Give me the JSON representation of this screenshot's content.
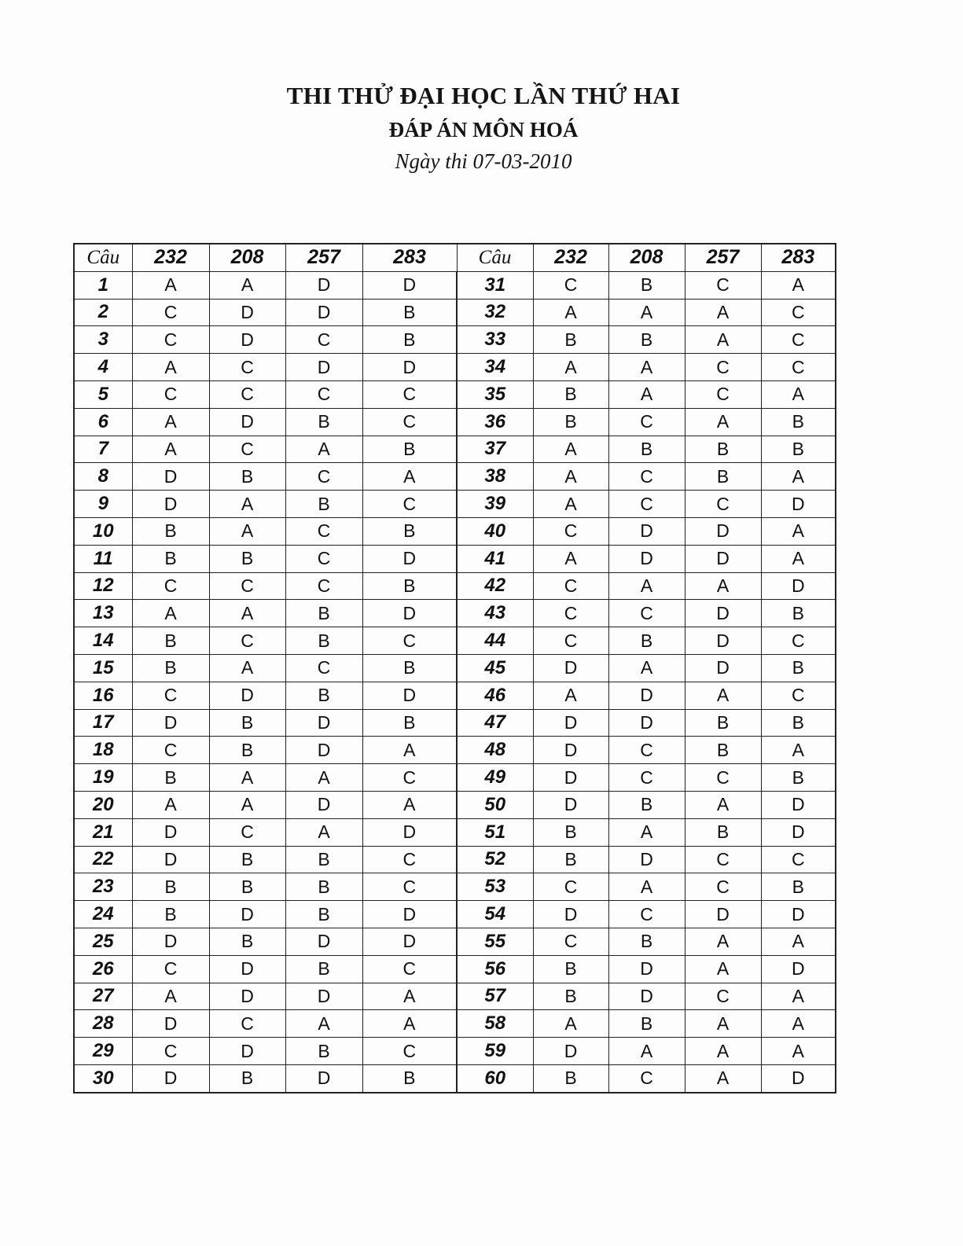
{
  "header": {
    "title": "THI THỬ ĐẠI HỌC LẦN THỨ HAI",
    "subtitle": "ĐÁP ÁN MÔN HOÁ",
    "date": "Ngày thi 07-03-2010"
  },
  "table": {
    "columns": [
      "Câu",
      "232",
      "208",
      "257",
      "283"
    ],
    "rows": [
      [
        "1",
        "A",
        "A",
        "D",
        "D"
      ],
      [
        "2",
        "C",
        "D",
        "D",
        "B"
      ],
      [
        "3",
        "C",
        "D",
        "C",
        "B"
      ],
      [
        "4",
        "A",
        "C",
        "D",
        "D"
      ],
      [
        "5",
        "C",
        "C",
        "C",
        "C"
      ],
      [
        "6",
        "A",
        "D",
        "B",
        "C"
      ],
      [
        "7",
        "A",
        "C",
        "A",
        "B"
      ],
      [
        "8",
        "D",
        "B",
        "C",
        "A"
      ],
      [
        "9",
        "D",
        "A",
        "B",
        "C"
      ],
      [
        "10",
        "B",
        "A",
        "C",
        "B"
      ],
      [
        "11",
        "B",
        "B",
        "C",
        "D"
      ],
      [
        "12",
        "C",
        "C",
        "C",
        "B"
      ],
      [
        "13",
        "A",
        "A",
        "B",
        "D"
      ],
      [
        "14",
        "B",
        "C",
        "B",
        "C"
      ],
      [
        "15",
        "B",
        "A",
        "C",
        "B"
      ],
      [
        "16",
        "C",
        "D",
        "B",
        "D"
      ],
      [
        "17",
        "D",
        "B",
        "D",
        "B"
      ],
      [
        "18",
        "C",
        "B",
        "D",
        "A"
      ],
      [
        "19",
        "B",
        "A",
        "A",
        "C"
      ],
      [
        "20",
        "A",
        "A",
        "D",
        "A"
      ],
      [
        "21",
        "D",
        "C",
        "A",
        "D"
      ],
      [
        "22",
        "D",
        "B",
        "B",
        "C"
      ],
      [
        "23",
        "B",
        "B",
        "B",
        "C"
      ],
      [
        "24",
        "B",
        "D",
        "B",
        "D"
      ],
      [
        "25",
        "D",
        "B",
        "D",
        "D"
      ],
      [
        "26",
        "C",
        "D",
        "B",
        "C"
      ],
      [
        "27",
        "A",
        "D",
        "D",
        "A"
      ],
      [
        "28",
        "D",
        "C",
        "A",
        "A"
      ],
      [
        "29",
        "C",
        "D",
        "B",
        "C"
      ],
      [
        "30",
        "D",
        "B",
        "D",
        "B"
      ],
      [
        "31",
        "C",
        "B",
        "C",
        "A"
      ],
      [
        "32",
        "A",
        "A",
        "A",
        "C"
      ],
      [
        "33",
        "B",
        "B",
        "A",
        "C"
      ],
      [
        "34",
        "A",
        "A",
        "C",
        "C"
      ],
      [
        "35",
        "B",
        "A",
        "C",
        "A"
      ],
      [
        "36",
        "B",
        "C",
        "A",
        "B"
      ],
      [
        "37",
        "A",
        "B",
        "B",
        "B"
      ],
      [
        "38",
        "A",
        "C",
        "B",
        "A"
      ],
      [
        "39",
        "A",
        "C",
        "C",
        "D"
      ],
      [
        "40",
        "C",
        "D",
        "D",
        "A"
      ],
      [
        "41",
        "A",
        "D",
        "D",
        "A"
      ],
      [
        "42",
        "C",
        "A",
        "A",
        "D"
      ],
      [
        "43",
        "C",
        "C",
        "D",
        "B"
      ],
      [
        "44",
        "C",
        "B",
        "D",
        "C"
      ],
      [
        "45",
        "D",
        "A",
        "D",
        "B"
      ],
      [
        "46",
        "A",
        "D",
        "A",
        "C"
      ],
      [
        "47",
        "D",
        "D",
        "B",
        "B"
      ],
      [
        "48",
        "D",
        "C",
        "B",
        "A"
      ],
      [
        "49",
        "D",
        "C",
        "C",
        "B"
      ],
      [
        "50",
        "D",
        "B",
        "A",
        "D"
      ],
      [
        "51",
        "B",
        "A",
        "B",
        "D"
      ],
      [
        "52",
        "B",
        "D",
        "C",
        "C"
      ],
      [
        "53",
        "C",
        "A",
        "C",
        "B"
      ],
      [
        "54",
        "D",
        "C",
        "D",
        "D"
      ],
      [
        "55",
        "C",
        "B",
        "A",
        "A"
      ],
      [
        "56",
        "B",
        "D",
        "A",
        "D"
      ],
      [
        "57",
        "B",
        "D",
        "C",
        "A"
      ],
      [
        "58",
        "A",
        "B",
        "A",
        "A"
      ],
      [
        "59",
        "D",
        "A",
        "A",
        "A"
      ],
      [
        "60",
        "B",
        "C",
        "A",
        "D"
      ]
    ]
  }
}
